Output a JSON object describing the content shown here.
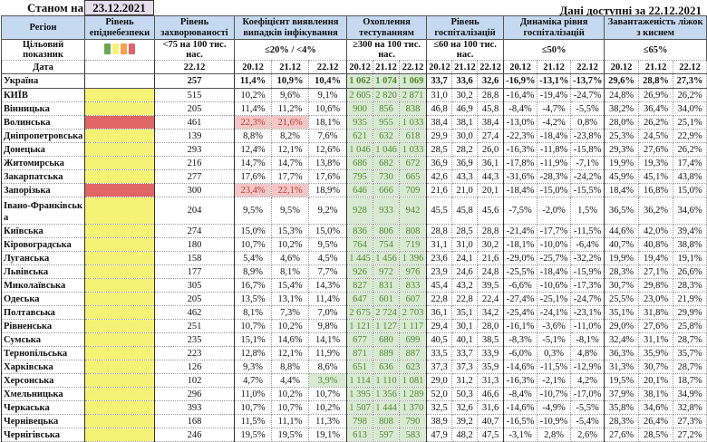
{
  "header": {
    "as_of_label": "Станом на",
    "as_of_date": "23.12.2021",
    "available_label": "Дані доступні за  22.12.2021"
  },
  "columns": {
    "region": "Регіон",
    "epid_level": "Рівень епіднебезпеки",
    "incidence": "Рівень захворюваності",
    "positivity": "Коефіцієнт виявлення випадків інфікування",
    "testing": "Охоплення тестуванням",
    "hospitalization": "Рівень госпіталізацій",
    "hosp_dynamics": "Динаміка рівня госпіталізацій",
    "oxygen_beds": "Завантаженість ліжок з киснем"
  },
  "targets": {
    "label": "Цільовий показник",
    "level_colors": [
      "#6aa84f",
      "#f6f276",
      "#f6a04d",
      "#e06666"
    ],
    "incidence": "<75 на 100 тис. нас.",
    "positivity": "≤20% / <4%",
    "testing": "≥300 на 100 тис. нас.",
    "hospitalization": "≤60 на 100 тис. нас.",
    "hosp_dynamics": "≤50%",
    "oxygen_beds": "≤65%"
  },
  "dates": {
    "label": "Дата",
    "single": "22.12",
    "triple": [
      "20.12",
      "21.12",
      "22.12"
    ]
  },
  "colors": {
    "yellow": "#f6f276",
    "red": "#e06666",
    "header": "#c5d9f1",
    "green": "#d9ead3",
    "pink": "#f4c7c7"
  },
  "rows": [
    {
      "name": "Україна",
      "level": "",
      "inc": "257",
      "coef": [
        "11,4%",
        "10,9%",
        "10,4%"
      ],
      "coef_flag": [
        "",
        "",
        ""
      ],
      "test": [
        "1 062",
        "1 074",
        "1 069"
      ],
      "hosp": [
        "33,7",
        "33,6",
        "32,6"
      ],
      "dyn": [
        "-16,9%",
        "-13,1%",
        "-13,7%"
      ],
      "beds": [
        "29,6%",
        "28,8%",
        "27,3%"
      ]
    },
    {
      "name": "КИЇВ",
      "level": "yellow",
      "inc": "515",
      "coef": [
        "10,2%",
        "9,6%",
        "9,1%"
      ],
      "coef_flag": [
        "",
        "",
        ""
      ],
      "test": [
        "2 605",
        "2 820",
        "2 871"
      ],
      "hosp": [
        "31,0",
        "30,2",
        "28,8"
      ],
      "dyn": [
        "-16,4%",
        "-19,4%",
        "-24,7%"
      ],
      "beds": [
        "24,8%",
        "26,9%",
        "26,2%"
      ]
    },
    {
      "name": "Вінницька",
      "level": "yellow",
      "inc": "205",
      "coef": [
        "11,4%",
        "11,2%",
        "10,6%"
      ],
      "coef_flag": [
        "",
        "",
        ""
      ],
      "test": [
        "900",
        "856",
        "838"
      ],
      "hosp": [
        "46,8",
        "46,9",
        "45,8"
      ],
      "dyn": [
        "-8,4%",
        "-4,7%",
        "-5,5%"
      ],
      "beds": [
        "38,2%",
        "36,4%",
        "34,0%"
      ]
    },
    {
      "name": "Волинська",
      "level": "red",
      "inc": "461",
      "coef": [
        "22,3%",
        "21,6%",
        "18,1%"
      ],
      "coef_flag": [
        "bad",
        "bad",
        ""
      ],
      "test": [
        "935",
        "955",
        "1 033"
      ],
      "hosp": [
        "38,4",
        "38,1",
        "38,4"
      ],
      "dyn": [
        "-13,0%",
        "-4,2%",
        "0,8%"
      ],
      "beds": [
        "28,0%",
        "26,2%",
        "25,1%"
      ]
    },
    {
      "name": "Дніпропетровська",
      "level": "yellow",
      "inc": "139",
      "coef": [
        "8,8%",
        "8,2%",
        "7,6%"
      ],
      "coef_flag": [
        "",
        "",
        ""
      ],
      "test": [
        "621",
        "632",
        "618"
      ],
      "hosp": [
        "29,9",
        "30,0",
        "27,4"
      ],
      "dyn": [
        "-22,3%",
        "-18,4%",
        "-23,8%"
      ],
      "beds": [
        "25,3%",
        "24,5%",
        "22,9%"
      ]
    },
    {
      "name": "Донецька",
      "level": "yellow",
      "inc": "293",
      "coef": [
        "12,4%",
        "12,1%",
        "12,6%"
      ],
      "coef_flag": [
        "",
        "",
        ""
      ],
      "test": [
        "1 046",
        "1 046",
        "1 033"
      ],
      "hosp": [
        "28,5",
        "28,2",
        "26,0"
      ],
      "dyn": [
        "-16,3%",
        "-11,8%",
        "-15,8%"
      ],
      "beds": [
        "29,3%",
        "27,6%",
        "26,2%"
      ]
    },
    {
      "name": "Житомирська",
      "level": "yellow",
      "inc": "216",
      "coef": [
        "14,7%",
        "14,7%",
        "13,8%"
      ],
      "coef_flag": [
        "",
        "",
        ""
      ],
      "test": [
        "686",
        "682",
        "672"
      ],
      "hosp": [
        "36,9",
        "36,9",
        "36,1"
      ],
      "dyn": [
        "-17,8%",
        "-11,9%",
        "-7,1%"
      ],
      "beds": [
        "19,9%",
        "19,3%",
        "17,4%"
      ]
    },
    {
      "name": "Закарпатська",
      "level": "yellow",
      "inc": "277",
      "coef": [
        "17,6%",
        "17,7%",
        "17,6%"
      ],
      "coef_flag": [
        "",
        "",
        ""
      ],
      "test": [
        "795",
        "730",
        "665"
      ],
      "hosp": [
        "42,6",
        "43,3",
        "44,3"
      ],
      "dyn": [
        "-31,6%",
        "-28,3%",
        "-24,2%"
      ],
      "beds": [
        "45,9%",
        "45,1%",
        "43,8%"
      ]
    },
    {
      "name": "Запорізька",
      "level": "red",
      "inc": "300",
      "coef": [
        "23,4%",
        "22,1%",
        "18,9%"
      ],
      "coef_flag": [
        "bad",
        "bad",
        ""
      ],
      "test": [
        "646",
        "666",
        "709"
      ],
      "hosp": [
        "21,6",
        "21,0",
        "20,1"
      ],
      "dyn": [
        "-18,4%",
        "-15,0%",
        "-15,5%"
      ],
      "beds": [
        "18,4%",
        "16,8%",
        "15,0%"
      ]
    },
    {
      "name": "Івано-Франківська",
      "level": "yellow",
      "inc": "204",
      "coef": [
        "9,5%",
        "9,5%",
        "9,2%"
      ],
      "coef_flag": [
        "",
        "",
        ""
      ],
      "test": [
        "928",
        "933",
        "942"
      ],
      "hosp": [
        "45,5",
        "45,8",
        "45,6"
      ],
      "dyn": [
        "-7,5%",
        "-2,0%",
        "1,5%"
      ],
      "beds": [
        "36,5%",
        "36,2%",
        "34,6%"
      ]
    },
    {
      "name": "Київська",
      "level": "yellow",
      "inc": "274",
      "coef": [
        "15,0%",
        "15,3%",
        "15,0%"
      ],
      "coef_flag": [
        "",
        "",
        ""
      ],
      "test": [
        "836",
        "806",
        "808"
      ],
      "hosp": [
        "28,8",
        "28,5",
        "28,8"
      ],
      "dyn": [
        "-21,4%",
        "-17,7%",
        "-11,5%"
      ],
      "beds": [
        "44,6%",
        "42,0%",
        "39,4%"
      ]
    },
    {
      "name": "Кіровоградська",
      "level": "yellow",
      "inc": "180",
      "coef": [
        "10,7%",
        "10,2%",
        "9,5%"
      ],
      "coef_flag": [
        "",
        "",
        ""
      ],
      "test": [
        "764",
        "754",
        "719"
      ],
      "hosp": [
        "31,1",
        "31,0",
        "30,2"
      ],
      "dyn": [
        "-18,1%",
        "-10,0%",
        "-6,4%"
      ],
      "beds": [
        "40,7%",
        "40,8%",
        "38,8%"
      ]
    },
    {
      "name": "Луганська",
      "level": "yellow",
      "inc": "158",
      "coef": [
        "5,4%",
        "4,6%",
        "4,5%"
      ],
      "coef_flag": [
        "",
        "",
        ""
      ],
      "test": [
        "1 445",
        "1 456",
        "1 396"
      ],
      "hosp": [
        "23,6",
        "24,1",
        "21,6"
      ],
      "dyn": [
        "-29,0%",
        "-25,7%",
        "-32,2%"
      ],
      "beds": [
        "19,9%",
        "19,4%",
        "19,1%"
      ]
    },
    {
      "name": "Львівська",
      "level": "yellow",
      "inc": "177",
      "coef": [
        "8,9%",
        "8,1%",
        "7,7%"
      ],
      "coef_flag": [
        "",
        "",
        ""
      ],
      "test": [
        "926",
        "972",
        "976"
      ],
      "hosp": [
        "23,9",
        "24,6",
        "24,8"
      ],
      "dyn": [
        "-25,5%",
        "-18,4%",
        "-15,9%"
      ],
      "beds": [
        "28,3%",
        "27,1%",
        "26,6%"
      ]
    },
    {
      "name": "Миколаївська",
      "level": "yellow",
      "inc": "305",
      "coef": [
        "16,7%",
        "15,4%",
        "14,3%"
      ],
      "coef_flag": [
        "",
        "",
        ""
      ],
      "test": [
        "827",
        "831",
        "833"
      ],
      "hosp": [
        "45,4",
        "43,2",
        "39,5"
      ],
      "dyn": [
        "-6,6%",
        "-10,6%",
        "-17,3%"
      ],
      "beds": [
        "30,7%",
        "29,8%",
        "28,3%"
      ]
    },
    {
      "name": "Одеська",
      "level": "yellow",
      "inc": "205",
      "coef": [
        "13,5%",
        "13,1%",
        "11,4%"
      ],
      "coef_flag": [
        "",
        "",
        ""
      ],
      "test": [
        "647",
        "601",
        "607"
      ],
      "hosp": [
        "22,8",
        "22,8",
        "22,4"
      ],
      "dyn": [
        "-27,4%",
        "-25,1%",
        "-24,7%"
      ],
      "beds": [
        "25,5%",
        "23,0%",
        "21,9%"
      ]
    },
    {
      "name": "Полтавська",
      "level": "yellow",
      "inc": "462",
      "coef": [
        "8,1%",
        "7,3%",
        "7,0%"
      ],
      "coef_flag": [
        "",
        "",
        ""
      ],
      "test": [
        "2 675",
        "2 724",
        "2 703"
      ],
      "hosp": [
        "36,1",
        "35,1",
        "34,2"
      ],
      "dyn": [
        "-25,4%",
        "-24,1%",
        "-23,1%"
      ],
      "beds": [
        "35,1%",
        "31,8%",
        "29,9%"
      ]
    },
    {
      "name": "Рівненська",
      "level": "yellow",
      "inc": "251",
      "coef": [
        "10,7%",
        "10,2%",
        "9,8%"
      ],
      "coef_flag": [
        "",
        "",
        ""
      ],
      "test": [
        "1 121",
        "1 127",
        "1 117"
      ],
      "hosp": [
        "29,4",
        "30,1",
        "28,0"
      ],
      "dyn": [
        "-16,1%",
        "-3,6%",
        "-11,0%"
      ],
      "beds": [
        "29,0%",
        "27,6%",
        "25,8%"
      ]
    },
    {
      "name": "Сумська",
      "level": "yellow",
      "inc": "235",
      "coef": [
        "15,1%",
        "14,6%",
        "14,1%"
      ],
      "coef_flag": [
        "",
        "",
        ""
      ],
      "test": [
        "677",
        "680",
        "699"
      ],
      "hosp": [
        "40,5",
        "40,1",
        "38,5"
      ],
      "dyn": [
        "-8,3%",
        "-5,1%",
        "-8,1%"
      ],
      "beds": [
        "32,4%",
        "31,1%",
        "28,7%"
      ]
    },
    {
      "name": "Тернопільська",
      "level": "yellow",
      "inc": "223",
      "coef": [
        "12,8%",
        "12,1%",
        "11,9%"
      ],
      "coef_flag": [
        "",
        "",
        ""
      ],
      "test": [
        "871",
        "889",
        "887"
      ],
      "hosp": [
        "33,5",
        "33,7",
        "33,9"
      ],
      "dyn": [
        "-6,0%",
        "0,3%",
        "4,8%"
      ],
      "beds": [
        "36,3%",
        "35,9%",
        "35,7%"
      ]
    },
    {
      "name": "Харківська",
      "level": "yellow",
      "inc": "126",
      "coef": [
        "9,3%",
        "8,8%",
        "8,6%"
      ],
      "coef_flag": [
        "",
        "",
        ""
      ],
      "test": [
        "651",
        "636",
        "623"
      ],
      "hosp": [
        "37,3",
        "37,3",
        "35,9"
      ],
      "dyn": [
        "-14,6%",
        "-11,5%",
        "-12,9%"
      ],
      "beds": [
        "31,3%",
        "30,7%",
        "28,7%"
      ]
    },
    {
      "name": "Херсонська",
      "level": "yellow",
      "inc": "102",
      "coef": [
        "4,7%",
        "4,4%",
        "3,9%"
      ],
      "coef_flag": [
        "",
        "",
        "good"
      ],
      "test": [
        "1 114",
        "1 110",
        "1 081"
      ],
      "hosp": [
        "29,0",
        "31,2",
        "31,3"
      ],
      "dyn": [
        "-16,3%",
        "-2,1%",
        "4,2%"
      ],
      "beds": [
        "19,5%",
        "20,1%",
        "18,7%"
      ]
    },
    {
      "name": "Хмельницька",
      "level": "yellow",
      "inc": "296",
      "coef": [
        "11,0%",
        "10,2%",
        "10,7%"
      ],
      "coef_flag": [
        "",
        "",
        ""
      ],
      "test": [
        "1 395",
        "1 356",
        "1 289"
      ],
      "hosp": [
        "52,0",
        "50,3",
        "46,6"
      ],
      "dyn": [
        "-8,4%",
        "-10,7%",
        "-17,0%"
      ],
      "beds": [
        "37,9%",
        "38,1%",
        "34,9%"
      ]
    },
    {
      "name": "Черкаська",
      "level": "yellow",
      "inc": "393",
      "coef": [
        "10,7%",
        "10,7%",
        "10,2%"
      ],
      "coef_flag": [
        "",
        "",
        ""
      ],
      "test": [
        "1 507",
        "1 444",
        "1 370"
      ],
      "hosp": [
        "32,5",
        "32,6",
        "31,6"
      ],
      "dyn": [
        "-14,6%",
        "-4,9%",
        "-5,5%"
      ],
      "beds": [
        "35,8%",
        "34,6%",
        "32,8%"
      ]
    },
    {
      "name": "Чернівецька",
      "level": "yellow",
      "inc": "168",
      "coef": [
        "11,5%",
        "11,1%",
        "11,3%"
      ],
      "coef_flag": [
        "",
        "",
        ""
      ],
      "test": [
        "798",
        "808",
        "790"
      ],
      "hosp": [
        "38,9",
        "39,2",
        "40,7"
      ],
      "dyn": [
        "-16,5%",
        "-10,9%",
        "-5,4%"
      ],
      "beds": [
        "28,3%",
        "26,4%",
        "27,3%"
      ]
    },
    {
      "name": "Чернігівська",
      "level": "yellow",
      "inc": "246",
      "coef": [
        "19,5%",
        "19,5%",
        "19,1%"
      ],
      "coef_flag": [
        "",
        "",
        ""
      ],
      "test": [
        "613",
        "597",
        "583"
      ],
      "hosp": [
        "47,9",
        "48,2",
        "47,5"
      ],
      "dyn": [
        "-3,1%",
        "2,8%",
        "2,6%"
      ],
      "beds": [
        "27,6%",
        "28,5%",
        "27,2%"
      ]
    }
  ]
}
